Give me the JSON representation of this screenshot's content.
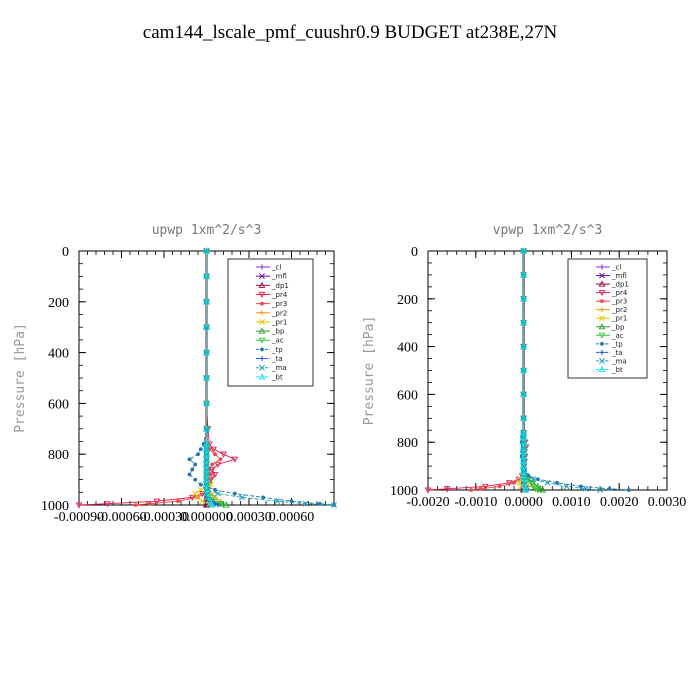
{
  "title": "cam144_lscale_pmf_cuushr0.9  BUDGET at238E,27N",
  "chart_data": [
    {
      "type": "line",
      "title": "upwp   1xm^2/s^3",
      "ylabel": "Pressure [hPa]",
      "ylim": [
        1000,
        0
      ],
      "yticks": [
        0,
        200,
        400,
        600,
        800,
        1000
      ],
      "ytick_labels": [
        "0",
        "200",
        "400",
        "600",
        "800",
        "1000"
      ],
      "xlim": [
        -0.0009,
        0.0009
      ],
      "xticks": [
        -0.0009,
        -0.0006,
        -0.0003,
        0,
        0.0003,
        0.0006
      ],
      "xtick_labels": [
        "-0.00090",
        "-0.00060",
        "-0.00030",
        "0.000000",
        "0.00030",
        "0.00060"
      ],
      "legend_position": "top-right",
      "pressure": [
        0,
        100,
        200,
        300,
        400,
        500,
        600,
        700,
        760,
        780,
        800,
        820,
        840,
        860,
        880,
        900,
        920,
        940,
        955,
        970,
        985,
        995,
        1000
      ],
      "series": [
        {
          "name": "_cl",
          "color": "#8a2be2",
          "values": [
            0,
            0,
            0,
            0,
            0,
            0,
            0,
            0,
            0,
            0,
            0,
            0,
            0,
            0,
            0,
            0,
            0,
            0,
            0,
            0,
            0,
            0,
            0
          ]
        },
        {
          "name": "_mfl",
          "color": "#6a0dad",
          "values": [
            0,
            0,
            0,
            0,
            0,
            0,
            0,
            0,
            0,
            0,
            0,
            0,
            0,
            0,
            0,
            0,
            0,
            0,
            0,
            0,
            0,
            0,
            0
          ]
        },
        {
          "name": "_dp1",
          "color": "#a0003c",
          "values": [
            0,
            0,
            0,
            0,
            0,
            0,
            0,
            0,
            0,
            0,
            0,
            0,
            0,
            0,
            0,
            0,
            0,
            0,
            0,
            0,
            0,
            0,
            0
          ]
        },
        {
          "name": "_pr4",
          "color": "#e6194b",
          "values": [
            0,
            0,
            0,
            0,
            0,
            0,
            0,
            1e-05,
            2e-05,
            5e-05,
            0.00012,
            0.0002,
            8e-05,
            4e-05,
            6e-05,
            3e-05,
            2e-05,
            1e-05,
            -3e-05,
            -0.0001,
            -0.00035,
            -0.0007,
            -0.0009
          ]
        },
        {
          "name": "_pr3",
          "color": "#ff4040",
          "values": [
            0,
            0,
            0,
            0,
            0,
            0,
            0,
            0,
            0,
            2e-05,
            6e-05,
            0.0001,
            4e-05,
            2e-05,
            3e-05,
            2e-05,
            1e-05,
            0,
            -2e-05,
            -6e-05,
            -0.0002,
            -0.0004,
            -0.0005
          ]
        },
        {
          "name": "_pr2",
          "color": "#ff9900",
          "values": [
            0,
            0,
            0,
            0,
            0,
            0,
            0,
            0,
            0,
            0,
            0,
            0,
            0,
            0,
            0,
            0,
            0,
            1e-05,
            3e-05,
            6e-05,
            0.0001,
            8e-05,
            4e-05
          ]
        },
        {
          "name": "_pr1",
          "color": "#e6c800",
          "values": [
            0,
            0,
            0,
            0,
            0,
            0,
            0,
            0,
            0,
            0,
            0,
            0,
            0,
            0,
            0,
            1e-05,
            3e-05,
            -4e-05,
            -8e-05,
            -6e-05,
            -3e-05,
            2e-05,
            4e-05
          ]
        },
        {
          "name": "_bp",
          "color": "#2ca02c",
          "values": [
            0,
            0,
            0,
            0,
            0,
            0,
            0,
            0,
            0,
            0,
            0,
            0,
            0,
            0,
            0,
            0,
            0,
            0,
            0,
            2e-05,
            5e-05,
            0.0001,
            0.00014
          ]
        },
        {
          "name": "_ac",
          "color": "#33cc33",
          "values": [
            0,
            0,
            0,
            0,
            0,
            0,
            0,
            0,
            0,
            0,
            0,
            0,
            0,
            0,
            0,
            0,
            0,
            0,
            1e-05,
            3e-05,
            6e-05,
            0.0001,
            0.00012
          ]
        },
        {
          "name": "_tp",
          "color": "#1f77b4",
          "values": [
            0,
            0,
            0,
            0,
            0,
            0,
            0,
            0,
            -2e-05,
            -4e-05,
            -6e-05,
            -0.00012,
            -8e-05,
            -0.0001,
            -0.00012,
            -8e-05,
            -4e-05,
            6e-05,
            0.0002,
            0.0004,
            0.0006,
            0.0008,
            0.0009
          ]
        },
        {
          "name": "_ta",
          "color": "#1e50e6",
          "values": [
            0,
            0,
            0,
            0,
            0,
            0,
            0,
            0,
            0,
            0,
            0,
            0,
            0,
            0,
            0,
            0,
            0,
            0,
            0,
            1e-05,
            3e-05,
            6e-05,
            8e-05
          ]
        },
        {
          "name": "_ma",
          "color": "#17a0b8",
          "values": [
            0,
            0,
            0,
            0,
            0,
            0,
            0,
            0,
            0,
            0,
            0,
            0,
            0,
            0,
            0,
            0,
            0,
            0,
            8e-05,
            0.00025,
            0.0005,
            0.0007,
            0.0009
          ]
        },
        {
          "name": "_bt",
          "color": "#00e5ee",
          "values": [
            0,
            0,
            0,
            0,
            0,
            0,
            0,
            0,
            0,
            0,
            0,
            0,
            0,
            0,
            0,
            0,
            0,
            0,
            0,
            1e-05,
            2e-05,
            3e-05,
            4e-05
          ]
        }
      ]
    },
    {
      "type": "line",
      "title": "vpwp   1xm^2/s^3",
      "ylabel": "Pressure [hPa]",
      "ylim": [
        1000,
        0
      ],
      "yticks": [
        0,
        200,
        400,
        600,
        800,
        1000
      ],
      "ytick_labels": [
        "0",
        "200",
        "400",
        "600",
        "800",
        "1000"
      ],
      "xlim": [
        -0.002,
        0.003
      ],
      "xticks": [
        -0.002,
        -0.001,
        0,
        0.001,
        0.002,
        0.003
      ],
      "xtick_labels": [
        "-0.0020",
        "-0.0010",
        "0.0000",
        "0.0010",
        "0.0020",
        "0.0030"
      ],
      "legend_position": "top-right",
      "pressure": [
        0,
        100,
        200,
        300,
        400,
        500,
        600,
        700,
        760,
        780,
        800,
        820,
        840,
        860,
        880,
        900,
        920,
        940,
        955,
        970,
        985,
        995,
        1000
      ],
      "series": [
        {
          "name": "_cl",
          "color": "#8a2be2",
          "values": [
            0,
            0,
            0,
            0,
            0,
            0,
            0,
            0,
            0,
            0,
            0,
            0,
            0,
            0,
            0,
            0,
            0,
            0,
            0,
            0,
            0,
            0,
            0
          ]
        },
        {
          "name": "_mfl",
          "color": "#6a0dad",
          "values": [
            0,
            0,
            0,
            0,
            0,
            0,
            0,
            0,
            0,
            0,
            0,
            0,
            0,
            0,
            0,
            0,
            0,
            0,
            0,
            0,
            0,
            0,
            0
          ]
        },
        {
          "name": "_dp1",
          "color": "#a0003c",
          "values": [
            0,
            0,
            0,
            0,
            0,
            0,
            0,
            0,
            0,
            0,
            0,
            0,
            0,
            0,
            0,
            0,
            0,
            0,
            0,
            0,
            0,
            0,
            0
          ]
        },
        {
          "name": "_pr4",
          "color": "#e6194b",
          "values": [
            0,
            0,
            0,
            0,
            0,
            0,
            0,
            0,
            0,
            0,
            3e-05,
            5e-05,
            2e-05,
            3e-05,
            2e-05,
            1e-05,
            0,
            -3e-05,
            -0.0001,
            -0.0003,
            -0.0008,
            -0.0016,
            -0.002
          ]
        },
        {
          "name": "_pr3",
          "color": "#ff4040",
          "values": [
            0,
            0,
            0,
            0,
            0,
            0,
            0,
            0,
            0,
            0,
            2e-05,
            3e-05,
            1e-05,
            2e-05,
            1e-05,
            0,
            0,
            -2e-05,
            -6e-05,
            -0.0002,
            -0.0005,
            -0.0009,
            -0.0011
          ]
        },
        {
          "name": "_pr2",
          "color": "#ff9900",
          "values": [
            0,
            0,
            0,
            0,
            0,
            0,
            0,
            0,
            0,
            0,
            0,
            0,
            0,
            0,
            0,
            0,
            0,
            0,
            2e-05,
            5e-05,
            0.0001,
            8e-05,
            5e-05
          ]
        },
        {
          "name": "_pr1",
          "color": "#e6c800",
          "values": [
            0,
            0,
            0,
            0,
            0,
            0,
            0,
            0,
            0,
            0,
            0,
            0,
            0,
            0,
            0,
            0,
            0,
            -2e-05,
            -5e-05,
            -8e-05,
            -5e-05,
            2e-05,
            4e-05
          ]
        },
        {
          "name": "_bp",
          "color": "#2ca02c",
          "values": [
            0,
            0,
            0,
            0,
            0,
            0,
            0,
            0,
            0,
            0,
            0,
            0,
            0,
            0,
            0,
            0,
            0,
            3e-05,
            0.0001,
            0.0002,
            0.0003,
            0.00035,
            0.0004
          ]
        },
        {
          "name": "_ac",
          "color": "#33cc33",
          "values": [
            0,
            0,
            0,
            0,
            0,
            0,
            0,
            0,
            0,
            0,
            0,
            0,
            0,
            0,
            0,
            0,
            0,
            2e-05,
            8e-05,
            0.00015,
            0.0002,
            0.00025,
            0.0003
          ]
        },
        {
          "name": "_tp",
          "color": "#1f77b4",
          "values": [
            0,
            0,
            0,
            0,
            0,
            0,
            0,
            0,
            -2e-05,
            -3e-05,
            -4e-05,
            -2e-05,
            -3e-05,
            -4e-05,
            -2e-05,
            0,
            3e-05,
            0.0001,
            0.0003,
            0.0007,
            0.0012,
            0.0018,
            0.0022
          ]
        },
        {
          "name": "_ta",
          "color": "#1e50e6",
          "values": [
            0,
            0,
            0,
            0,
            0,
            0,
            0,
            0,
            0,
            0,
            0,
            0,
            0,
            0,
            0,
            0,
            0,
            0,
            0,
            2e-05,
            4e-05,
            6e-05,
            8e-05
          ]
        },
        {
          "name": "_ma",
          "color": "#17a0b8",
          "values": [
            0,
            0,
            0,
            0,
            0,
            0,
            0,
            0,
            0,
            0,
            0,
            0,
            0,
            0,
            0,
            0,
            0,
            5e-05,
            0.0002,
            0.0005,
            0.0009,
            0.0013,
            0.0016
          ]
        },
        {
          "name": "_bt",
          "color": "#00e5ee",
          "values": [
            0,
            0,
            0,
            0,
            0,
            0,
            0,
            0,
            0,
            0,
            0,
            0,
            0,
            0,
            0,
            0,
            0,
            0,
            0,
            2e-05,
            3e-05,
            4e-05,
            5e-05
          ]
        }
      ]
    }
  ]
}
